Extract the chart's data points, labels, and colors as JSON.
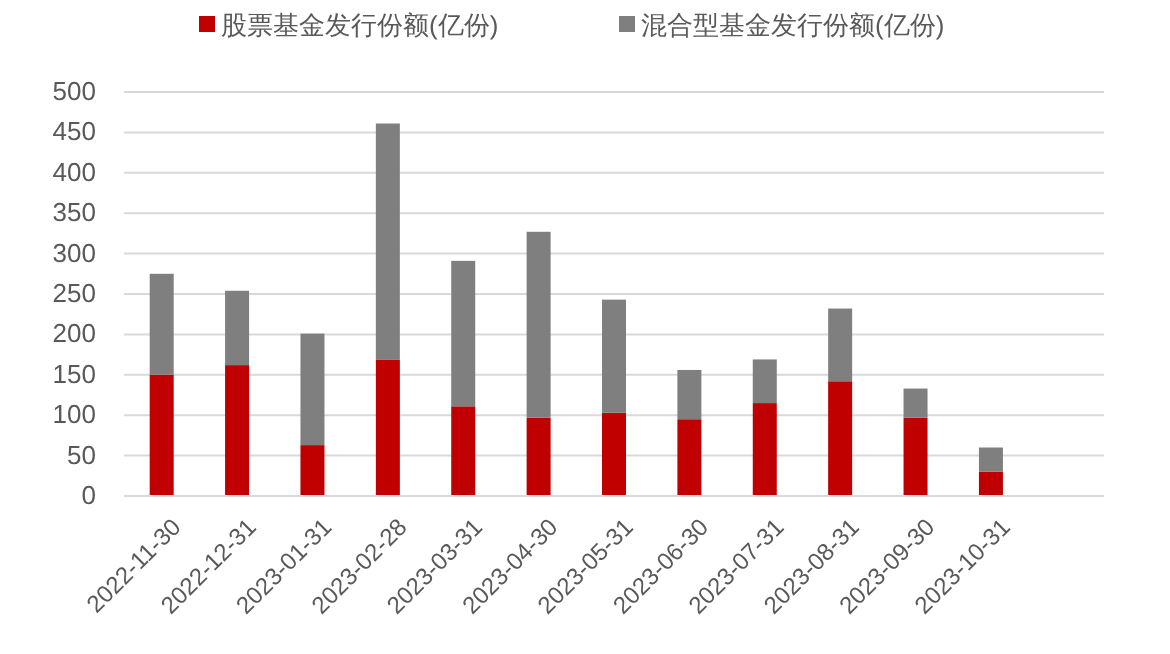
{
  "chart_data": {
    "type": "bar",
    "stacked": true,
    "legend": "top",
    "categories": [
      "2022-11-30",
      "2022-12-31",
      "2023-01-31",
      "2023-02-28",
      "2023-03-31",
      "2023-04-30",
      "2023-05-31",
      "2023-06-30",
      "2023-07-31",
      "2023-08-31",
      "2023-09-30",
      "2023-10-31"
    ],
    "series": [
      {
        "name": "股票基金发行份额(亿份)",
        "color": "#c00000",
        "values": [
          150,
          162,
          63,
          169,
          111,
          97,
          103,
          95,
          115,
          142,
          97,
          30
        ]
      },
      {
        "name": "混合型基金发行份额(亿份)",
        "color": "#7f7f7f",
        "values": [
          125,
          92,
          138,
          292,
          180,
          230,
          140,
          61,
          54,
          90,
          36,
          30
        ]
      }
    ],
    "ylim": [
      0,
      500
    ],
    "yticks": [
      0,
      50,
      100,
      150,
      200,
      250,
      300,
      350,
      400,
      450,
      500
    ],
    "grid": "y"
  }
}
